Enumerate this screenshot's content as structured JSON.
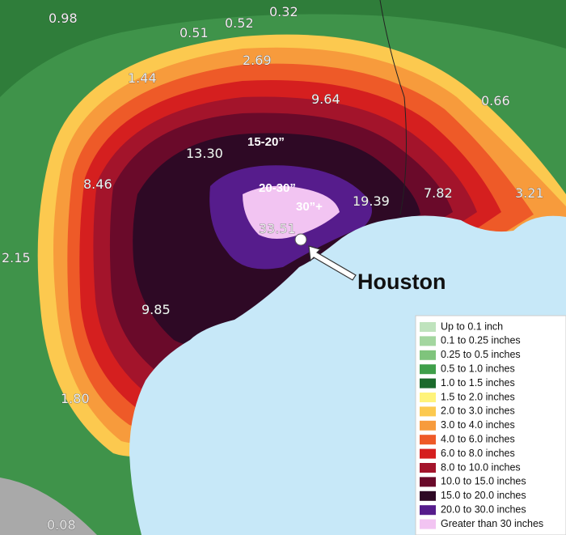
{
  "map_labels": [
    "0.98",
    "0.51",
    "0.52",
    "0.32",
    "2.69",
    "1.44",
    "9.64",
    "0.66",
    "13.30",
    "8.46",
    "19.39",
    "7.82",
    "3.21",
    "33.51",
    "2.15",
    "9.85",
    "1.80",
    "0.08"
  ],
  "zone_labels": [
    "15-20”",
    "20-30”",
    "30”+"
  ],
  "callout": "Houston",
  "legend": {
    "items": [
      {
        "label": "Up to 0.1 inch",
        "color": "#bfe3bd"
      },
      {
        "label": "0.1 to 0.25 inches",
        "color": "#a3d69f"
      },
      {
        "label": "0.25 to 0.5 inches",
        "color": "#7fc47c"
      },
      {
        "label": "0.5 to 1.0 inches",
        "color": "#3f9f4a"
      },
      {
        "label": "1.0 to 1.5 inches",
        "color": "#1b6a2c"
      },
      {
        "label": "1.5 to 2.0 inches",
        "color": "#fff37a"
      },
      {
        "label": "2.0 to 3.0 inches",
        "color": "#fcc94f"
      },
      {
        "label": "3.0 to 4.0 inches",
        "color": "#f79b3c"
      },
      {
        "label": "4.0 to 6.0 inches",
        "color": "#ee5a28"
      },
      {
        "label": "6.0 to 8.0 inches",
        "color": "#d51f1f"
      },
      {
        "label": "8.0 to 10.0 inches",
        "color": "#a3142b"
      },
      {
        "label": "10.0 to 15.0 inches",
        "color": "#6a0a2a"
      },
      {
        "label": "15.0 to 20.0 inches",
        "color": "#2e0925"
      },
      {
        "label": "20.0 to 30.0 inches",
        "color": "#561c8c"
      },
      {
        "label": "Greater than 30 inches",
        "color": "#f2c4f2"
      }
    ]
  }
}
